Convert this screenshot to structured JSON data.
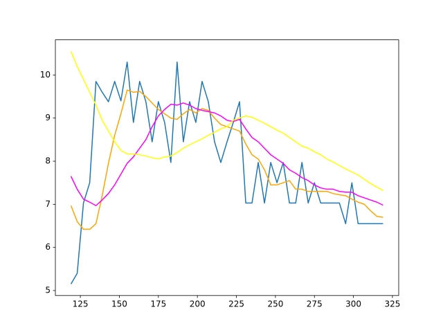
{
  "chart_data": {
    "type": "line",
    "x": [
      119,
      123,
      127,
      131,
      135,
      139,
      143,
      147,
      151,
      155,
      159,
      163,
      167,
      171,
      175,
      179,
      183,
      187,
      191,
      195,
      199,
      203,
      207,
      211,
      215,
      219,
      223,
      227,
      231,
      235,
      239,
      243,
      247,
      251,
      255,
      259,
      263,
      267,
      271,
      275,
      279,
      283,
      287,
      291,
      295,
      299,
      303,
      307,
      311,
      315,
      319
    ],
    "series": [
      {
        "color": "#1f77b4",
        "values": [
          5.15,
          5.4,
          7.03,
          7.5,
          9.85,
          9.6,
          9.38,
          9.85,
          9.4,
          10.3,
          8.9,
          9.85,
          9.38,
          8.45,
          9.38,
          8.9,
          7.97,
          10.3,
          8.45,
          9.38,
          8.9,
          9.85,
          9.38,
          8.45,
          7.97,
          8.45,
          8.9,
          9.38,
          7.03,
          7.03,
          7.97,
          7.03,
          7.97,
          7.5,
          7.97,
          7.03,
          7.03,
          7.97,
          7.03,
          7.5,
          7.03,
          7.03,
          7.03,
          7.03,
          6.55,
          7.5,
          6.55,
          6.55,
          6.55,
          6.55,
          6.55
        ]
      },
      {
        "color": "orange",
        "values": [
          6.97,
          6.6,
          6.42,
          6.42,
          6.55,
          7.2,
          7.95,
          8.6,
          9.1,
          9.65,
          9.6,
          9.62,
          9.5,
          9.35,
          9.2,
          9.1,
          9.0,
          8.97,
          9.1,
          9.2,
          9.12,
          9.22,
          9.18,
          9.0,
          8.85,
          8.8,
          8.75,
          8.7,
          8.4,
          8.15,
          8.05,
          7.8,
          7.45,
          7.45,
          7.5,
          7.55,
          7.35,
          7.35,
          7.3,
          7.3,
          7.3,
          7.3,
          7.25,
          7.22,
          7.2,
          7.12,
          7.05,
          7.0,
          6.85,
          6.72,
          6.7
        ]
      },
      {
        "color": "magenta",
        "values": [
          7.65,
          7.35,
          7.12,
          7.05,
          6.97,
          7.1,
          7.25,
          7.45,
          7.7,
          7.95,
          8.1,
          8.3,
          8.5,
          8.8,
          9.05,
          9.2,
          9.32,
          9.3,
          9.35,
          9.3,
          9.22,
          9.18,
          9.15,
          9.12,
          9.05,
          8.95,
          8.92,
          8.97,
          8.75,
          8.55,
          8.45,
          8.3,
          8.15,
          8.05,
          7.95,
          7.8,
          7.72,
          7.62,
          7.55,
          7.45,
          7.38,
          7.35,
          7.35,
          7.3,
          7.28,
          7.28,
          7.2,
          7.15,
          7.1,
          7.05,
          6.98
        ]
      },
      {
        "color": "yellow",
        "values": [
          10.55,
          10.2,
          9.9,
          9.6,
          9.3,
          8.95,
          8.7,
          8.45,
          8.25,
          8.17,
          8.17,
          8.15,
          8.12,
          8.08,
          8.05,
          8.1,
          8.12,
          8.2,
          8.3,
          8.38,
          8.45,
          8.52,
          8.6,
          8.67,
          8.75,
          8.8,
          8.95,
          9.0,
          9.05,
          9.02,
          8.95,
          8.88,
          8.8,
          8.72,
          8.65,
          8.55,
          8.45,
          8.35,
          8.3,
          8.22,
          8.15,
          8.05,
          7.98,
          7.9,
          7.82,
          7.75,
          7.68,
          7.58,
          7.48,
          7.4,
          7.32
        ]
      }
    ],
    "xlim": [
      109,
      329
    ],
    "ylim": [
      4.885,
      10.815
    ],
    "xticks": [
      125,
      150,
      175,
      200,
      225,
      250,
      275,
      300,
      325
    ],
    "yticks": [
      5,
      6,
      7,
      8,
      9,
      10
    ]
  }
}
